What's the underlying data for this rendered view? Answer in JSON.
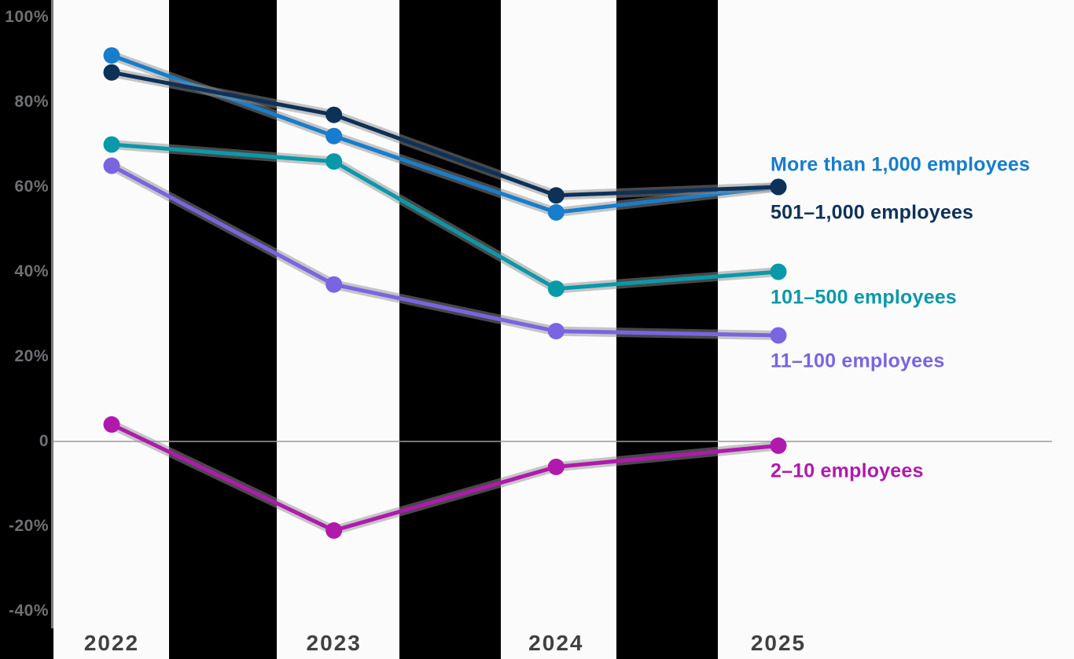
{
  "chart_data": {
    "type": "line",
    "title": "",
    "xlabel": "",
    "ylabel": "",
    "categories": [
      "2022",
      "2023",
      "2024",
      "2025"
    ],
    "series": [
      {
        "name": "More than 1,000 employees",
        "color": "#177DCC",
        "values": [
          91,
          72,
          54,
          60
        ]
      },
      {
        "name": "501–1,000 employees",
        "color": "#0E3158",
        "values": [
          87,
          77,
          58,
          60
        ]
      },
      {
        "name": "101–500 employees",
        "color": "#0999A9",
        "values": [
          70,
          66,
          36,
          40
        ]
      },
      {
        "name": "11–100 employees",
        "color": "#7A64E2",
        "values": [
          65,
          37,
          26,
          25
        ]
      },
      {
        "name": "2–10 employees",
        "color": "#AF1AAD",
        "values": [
          4,
          -21,
          -6,
          -1
        ]
      }
    ],
    "y_ticks": [
      {
        "value": 100,
        "label": "100%"
      },
      {
        "value": 80,
        "label": "80%"
      },
      {
        "value": 60,
        "label": "60%"
      },
      {
        "value": 40,
        "label": "40%"
      },
      {
        "value": 20,
        "label": "20%"
      },
      {
        "value": 0,
        "label": "0"
      },
      {
        "value": -20,
        "label": "-20%"
      },
      {
        "value": -40,
        "label": "-40%"
      }
    ],
    "ylim": [
      -44,
      104
    ],
    "grid": "zero-line-only",
    "legend_position": "right",
    "line_shadow_color": "#8f8f8f"
  }
}
